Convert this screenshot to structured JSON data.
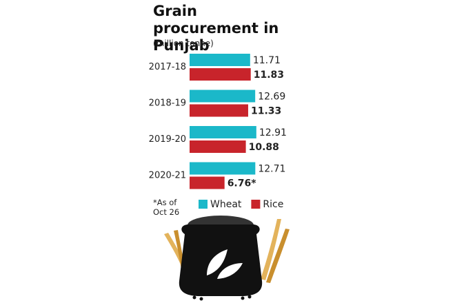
{
  "chart_data": {
    "type": "bar",
    "orientation": "horizontal",
    "title": "Grain procurement in Punjab",
    "subtitle": "(million tonne)",
    "footnote": "*As of Oct 26",
    "categories": [
      "2017-18",
      "2018-19",
      "2019-20",
      "2020-21"
    ],
    "series": [
      {
        "name": "Wheat",
        "color": "#1bb8c9",
        "values": [
          11.71,
          12.69,
          12.91,
          12.71
        ]
      },
      {
        "name": "Rice",
        "color": "#c8242b",
        "values": [
          11.83,
          11.33,
          10.88,
          6.76
        ],
        "value_labels": [
          "11.83",
          "11.33",
          "10.88",
          "6.76*"
        ],
        "bold_labels": true
      }
    ]
  }
}
